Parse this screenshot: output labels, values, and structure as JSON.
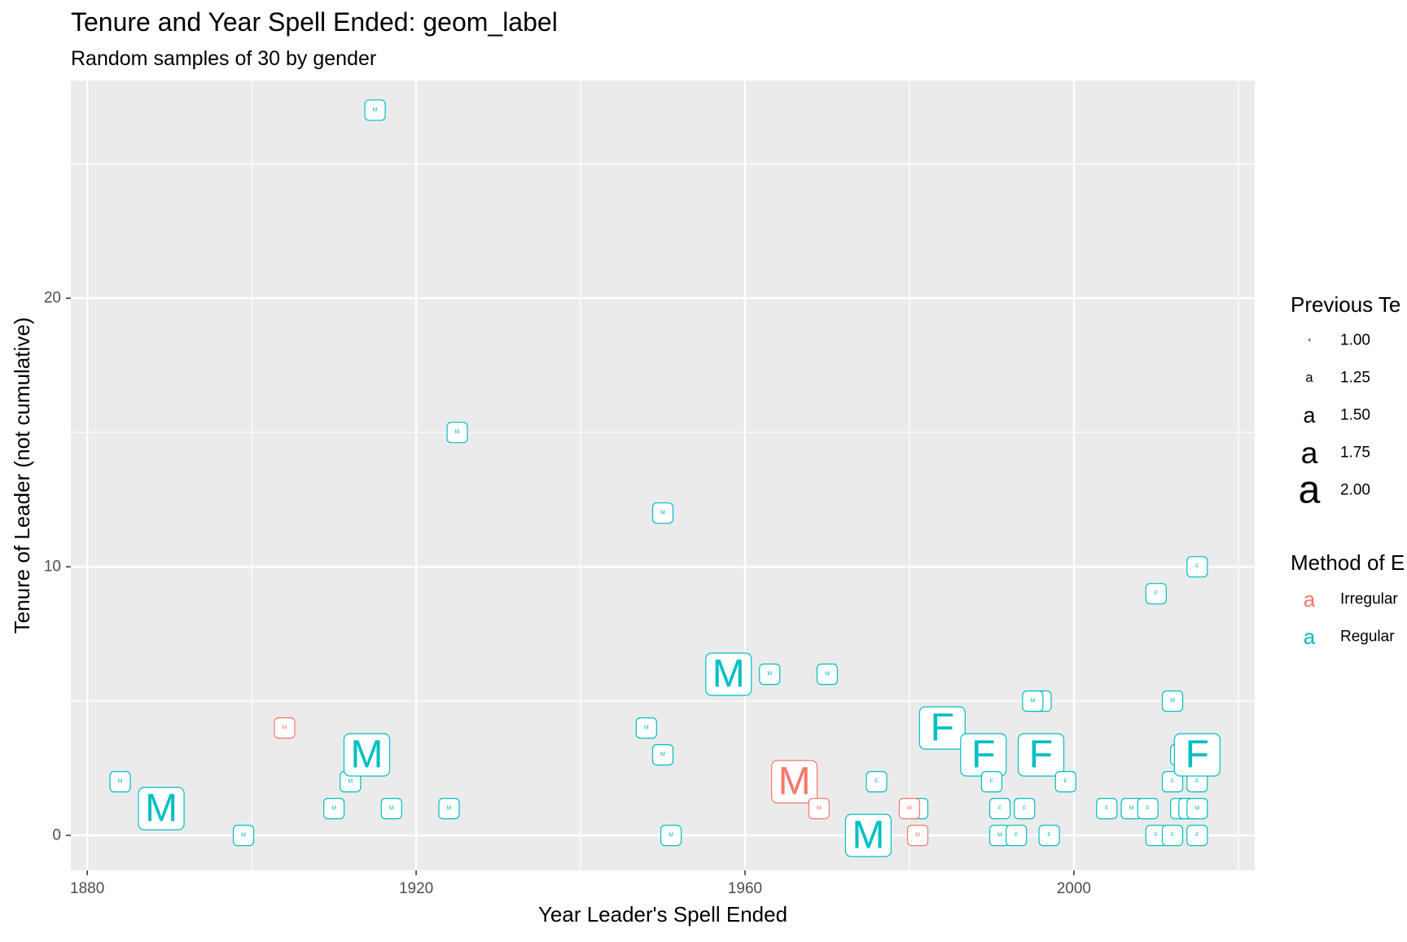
{
  "chart_data": {
    "type": "scatter",
    "geom": "label",
    "title": "Tenure and Year Spell Ended: geom_label",
    "subtitle": "Random samples of 30 by gender",
    "xlabel": "Year Leader's Spell Ended",
    "ylabel": "Tenure of Leader (not cumulative)",
    "xlim": [
      1878,
      2022
    ],
    "ylim": [
      -1.3,
      28.1
    ],
    "x_major_ticks": [
      1880,
      1920,
      1960,
      2000
    ],
    "x_minor_ticks": [
      1900,
      1940,
      1980,
      2020
    ],
    "y_major_ticks": [
      0,
      10,
      20
    ],
    "y_minor_ticks": [
      5,
      15,
      25
    ],
    "x_tick_labels": [
      "1880",
      "1920",
      "1960",
      "2000"
    ],
    "y_tick_labels": [
      "0",
      "10",
      "20"
    ],
    "grid": true,
    "panel_background": "#EBEBEB",
    "colors": {
      "Irregular": "#F8766D",
      "Regular": "#00BFC4"
    },
    "legend_position": "right",
    "legend_size_title": "Previous Te",
    "legend_size_levels": [
      {
        "value": 1.0,
        "label": "1.00"
      },
      {
        "value": 1.25,
        "label": "1.25"
      },
      {
        "value": 1.5,
        "label": "1.50"
      },
      {
        "value": 1.75,
        "label": "1.75"
      },
      {
        "value": 2.0,
        "label": "2.00"
      }
    ],
    "legend_size_glyph": "a",
    "legend_color_title": "Method of E",
    "legend_color_entries": [
      {
        "label": "Irregular",
        "method": "Irregular"
      },
      {
        "label": "Regular",
        "method": "Regular"
      }
    ],
    "points": [
      {
        "x": 1884,
        "y": 2,
        "label": "M",
        "method": "Regular",
        "size": 1.0
      },
      {
        "x": 1889,
        "y": 1,
        "label": "M",
        "method": "Regular",
        "size": 2.0
      },
      {
        "x": 1899,
        "y": 0,
        "label": "M",
        "method": "Regular",
        "size": 1.0
      },
      {
        "x": 1904,
        "y": 4,
        "label": "M",
        "method": "Irregular",
        "size": 1.0
      },
      {
        "x": 1910,
        "y": 1,
        "label": "M",
        "method": "Regular",
        "size": 1.0
      },
      {
        "x": 1912,
        "y": 2,
        "label": "M",
        "method": "Regular",
        "size": 1.0
      },
      {
        "x": 1914,
        "y": 3,
        "label": "M",
        "method": "Regular",
        "size": 2.0
      },
      {
        "x": 1915,
        "y": 27,
        "label": "M",
        "method": "Regular",
        "size": 1.0
      },
      {
        "x": 1917,
        "y": 1,
        "label": "M",
        "method": "Regular",
        "size": 1.0
      },
      {
        "x": 1924,
        "y": 1,
        "label": "M",
        "method": "Regular",
        "size": 1.0
      },
      {
        "x": 1925,
        "y": 15,
        "label": "M",
        "method": "Regular",
        "size": 1.0
      },
      {
        "x": 1948,
        "y": 4,
        "label": "M",
        "method": "Regular",
        "size": 1.0
      },
      {
        "x": 1950,
        "y": 12,
        "label": "M",
        "method": "Regular",
        "size": 1.0
      },
      {
        "x": 1950,
        "y": 3,
        "label": "M",
        "method": "Regular",
        "size": 1.0
      },
      {
        "x": 1951,
        "y": 0,
        "label": "M",
        "method": "Regular",
        "size": 1.0
      },
      {
        "x": 1958,
        "y": 6,
        "label": "M",
        "method": "Regular",
        "size": 2.0
      },
      {
        "x": 1963,
        "y": 6,
        "label": "M",
        "method": "Regular",
        "size": 1.0
      },
      {
        "x": 1966,
        "y": 2,
        "label": "M",
        "method": "Irregular",
        "size": 2.0
      },
      {
        "x": 1969,
        "y": 1,
        "label": "M",
        "method": "Irregular",
        "size": 1.0
      },
      {
        "x": 1970,
        "y": 6,
        "label": "M",
        "method": "Regular",
        "size": 1.0
      },
      {
        "x": 1975,
        "y": 0,
        "label": "M",
        "method": "Regular",
        "size": 2.0
      },
      {
        "x": 1976,
        "y": 2,
        "label": "F",
        "method": "Regular",
        "size": 1.0
      },
      {
        "x": 1981,
        "y": 1,
        "label": "M",
        "method": "Regular",
        "size": 1.0
      },
      {
        "x": 1980,
        "y": 1,
        "label": "M",
        "method": "Irregular",
        "size": 1.0
      },
      {
        "x": 1981,
        "y": 0,
        "label": "M",
        "method": "Irregular",
        "size": 1.0
      },
      {
        "x": 1984,
        "y": 4,
        "label": "F",
        "method": "Regular",
        "size": 2.0
      },
      {
        "x": 1989,
        "y": 3,
        "label": "F",
        "method": "Regular",
        "size": 2.0
      },
      {
        "x": 1990,
        "y": 2,
        "label": "F",
        "method": "Regular",
        "size": 1.0
      },
      {
        "x": 1991,
        "y": 1,
        "label": "F",
        "method": "Regular",
        "size": 1.0
      },
      {
        "x": 1991,
        "y": 0,
        "label": "M",
        "method": "Regular",
        "size": 1.0
      },
      {
        "x": 1993,
        "y": 0,
        "label": "F",
        "method": "Regular",
        "size": 1.0
      },
      {
        "x": 1994,
        "y": 1,
        "label": "F",
        "method": "Regular",
        "size": 1.0
      },
      {
        "x": 1996,
        "y": 5,
        "label": "M",
        "method": "Regular",
        "size": 1.0
      },
      {
        "x": 1995,
        "y": 5,
        "label": "M",
        "method": "Regular",
        "size": 1.0
      },
      {
        "x": 1996,
        "y": 3,
        "label": "F",
        "method": "Regular",
        "size": 2.0
      },
      {
        "x": 1997,
        "y": 0,
        "label": "F",
        "method": "Regular",
        "size": 1.0
      },
      {
        "x": 1999,
        "y": 2,
        "label": "F",
        "method": "Regular",
        "size": 1.0
      },
      {
        "x": 2004,
        "y": 1,
        "label": "F",
        "method": "Regular",
        "size": 1.0
      },
      {
        "x": 2007,
        "y": 1,
        "label": "M",
        "method": "Regular",
        "size": 1.0
      },
      {
        "x": 2009,
        "y": 1,
        "label": "F",
        "method": "Regular",
        "size": 1.0
      },
      {
        "x": 2010,
        "y": 9,
        "label": "F",
        "method": "Regular",
        "size": 1.0
      },
      {
        "x": 2010,
        "y": 0,
        "label": "F",
        "method": "Regular",
        "size": 1.0
      },
      {
        "x": 2012,
        "y": 5,
        "label": "M",
        "method": "Regular",
        "size": 1.0
      },
      {
        "x": 2012,
        "y": 2,
        "label": "F",
        "method": "Regular",
        "size": 1.0
      },
      {
        "x": 2012,
        "y": 0,
        "label": "F",
        "method": "Regular",
        "size": 1.0
      },
      {
        "x": 2013,
        "y": 3,
        "label": "F",
        "method": "Regular",
        "size": 1.0
      },
      {
        "x": 2013,
        "y": 1,
        "label": "M",
        "method": "Regular",
        "size": 1.0
      },
      {
        "x": 2014,
        "y": 1,
        "label": "F",
        "method": "Regular",
        "size": 1.0
      },
      {
        "x": 2015,
        "y": 2,
        "label": "F",
        "method": "Regular",
        "size": 1.0
      },
      {
        "x": 2015,
        "y": 10,
        "label": "F",
        "method": "Regular",
        "size": 1.0
      },
      {
        "x": 2015,
        "y": 1,
        "label": "M",
        "method": "Regular",
        "size": 1.0
      },
      {
        "x": 2015,
        "y": 0,
        "label": "F",
        "method": "Regular",
        "size": 1.0
      },
      {
        "x": 2015,
        "y": 3,
        "label": "F",
        "method": "Regular",
        "size": 2.0
      }
    ]
  }
}
